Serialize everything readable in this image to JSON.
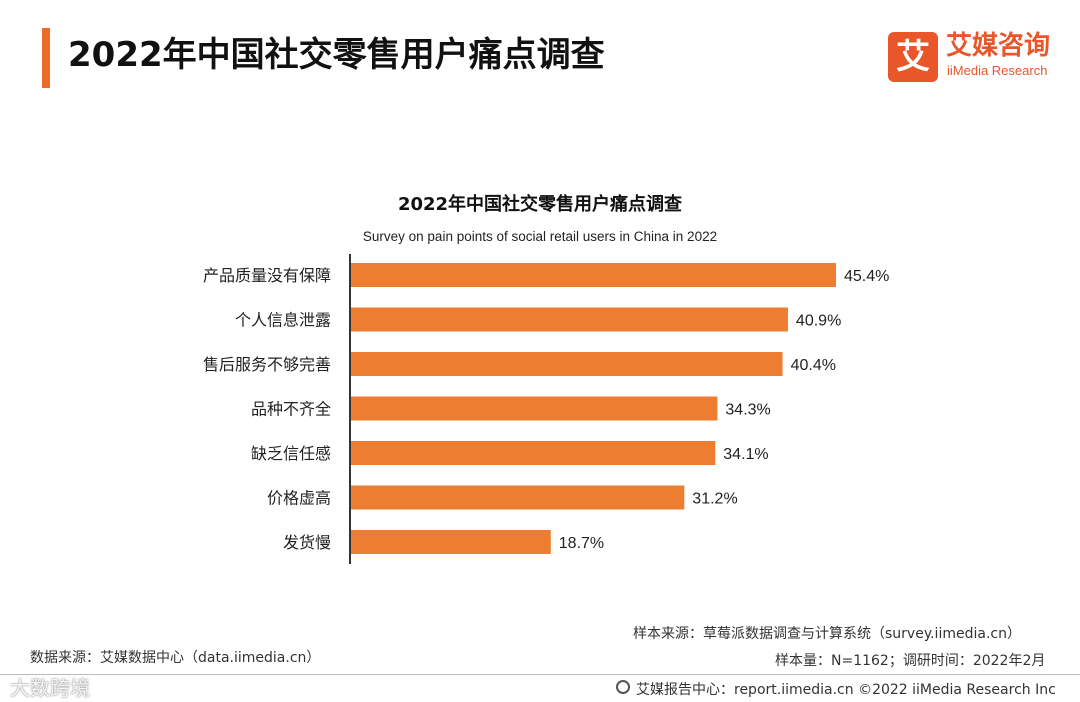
{
  "header": {
    "title": "2022年中国社交零售用户痛点调查"
  },
  "logo": {
    "mark": "艾",
    "name_cn": "艾媒咨询",
    "name_en": "iiMedia Research"
  },
  "colors": {
    "accent": "#ee6a2c",
    "bar": "#ed7d31",
    "axis": "#333333"
  },
  "chart_data": {
    "type": "bar",
    "orientation": "horizontal",
    "title": "2022年中国社交零售用户痛点调查",
    "subtitle": "Survey on pain points of social retail users in China in 2022",
    "categories": [
      "产品质量没有保障",
      "个人信息泄露",
      "售后服务不够完善",
      "品种不齐全",
      "缺乏信任感",
      "价格虚高",
      "发货慢"
    ],
    "values": [
      45.4,
      40.9,
      40.4,
      34.3,
      34.1,
      31.2,
      18.7
    ],
    "value_labels": [
      "45.4%",
      "40.9%",
      "40.4%",
      "34.3%",
      "34.1%",
      "31.2%",
      "18.7%"
    ],
    "unit": "%",
    "xlim": [
      0,
      50
    ],
    "grid": false,
    "legend": "none"
  },
  "footer": {
    "sample_source": "样本来源：草莓派数据调查与计算系统（survey.iimedia.cn）",
    "sample_info": "样本量：N=1162；调研时间：2022年2月",
    "data_source": "数据来源：艾媒数据中心（data.iimedia.cn）",
    "report_center": "艾媒报告中心：report.iimedia.cn  ©2022  iiMedia Research  Inc",
    "watermark": "大数跨境"
  }
}
